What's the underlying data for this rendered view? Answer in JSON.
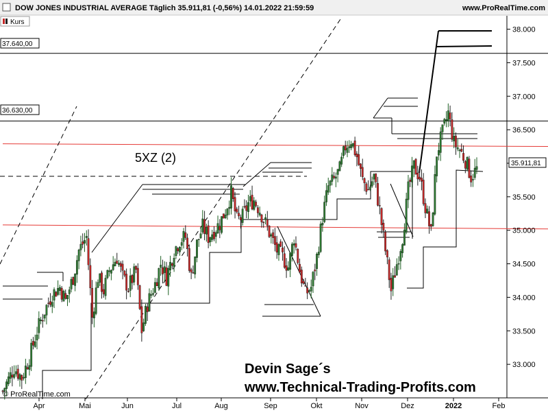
{
  "header": {
    "title": "DOW JONES INDUSTRIAL AVERAGE Täglich 35.911,81 (-0,56%) 14.01.2022 21:59:59",
    "site": "www.ProRealTime.com",
    "legend_label": "Kurs"
  },
  "watermark": "© ProRealTime.com",
  "branding": {
    "line1": "Devin Sage´s",
    "line2": "www.Technical-Trading-Profits.com"
  },
  "annotation": "5XZ (2)",
  "colors": {
    "up": "#2e7d32",
    "down": "#c62828",
    "support": "#e53935",
    "lines": "#000000",
    "background": "#ffffff"
  },
  "chart_data": {
    "type": "candlestick",
    "title": "DOW JONES INDUSTRIAL AVERAGE Täglich 35.911,81 (-0,56%) 14.01.2022 21:59:59",
    "ylim": [
      32500,
      38200
    ],
    "y_ticks": [
      33000,
      33500,
      34000,
      34500,
      35000,
      35500,
      36000,
      36500,
      37000,
      37500,
      38000
    ],
    "y_tick_labels": [
      "33.000",
      "33.500",
      "34.000",
      "34.500",
      "35.000",
      "35.500",
      "36.000",
      "36.500",
      "37.000",
      "37.500",
      "38.000"
    ],
    "x_ticks": [
      "Apr",
      "Mai",
      "Jun",
      "Jul",
      "Aug",
      "Sep",
      "Okt",
      "Nov",
      "Dez",
      "2022",
      "Feb"
    ],
    "level_boxes": [
      {
        "label": "37.640,00",
        "value": 37640
      },
      {
        "label": "36.630,00",
        "value": 36630
      }
    ],
    "last_price": {
      "label": "35.911,81",
      "value": 35911.81
    },
    "close_path": [
      [
        0,
        32600
      ],
      [
        6,
        32950
      ],
      [
        10,
        32800
      ],
      [
        14,
        33100
      ],
      [
        18,
        33500
      ],
      [
        22,
        33800
      ],
      [
        26,
        34050
      ],
      [
        30,
        34150
      ],
      [
        33,
        33950
      ],
      [
        37,
        34300
      ],
      [
        40,
        34700
      ],
      [
        44,
        34900
      ],
      [
        47,
        33700
      ],
      [
        50,
        34300
      ],
      [
        53,
        34100
      ],
      [
        56,
        34400
      ],
      [
        60,
        34600
      ],
      [
        63,
        34300
      ],
      [
        66,
        34150
      ],
      [
        70,
        34400
      ],
      [
        73,
        33500
      ],
      [
        76,
        33900
      ],
      [
        80,
        34200
      ],
      [
        83,
        34500
      ],
      [
        86,
        34300
      ],
      [
        90,
        34700
      ],
      [
        93,
        34850
      ],
      [
        96,
        34900
      ],
      [
        99,
        34300
      ],
      [
        102,
        34800
      ],
      [
        105,
        35050
      ],
      [
        108,
        34900
      ],
      [
        111,
        35000
      ],
      [
        114,
        35100
      ],
      [
        117,
        35300
      ],
      [
        120,
        35550
      ],
      [
        123,
        35150
      ],
      [
        126,
        35200
      ],
      [
        129,
        35400
      ],
      [
        132,
        35450
      ],
      [
        135,
        35300
      ],
      [
        138,
        35100
      ],
      [
        141,
        34900
      ],
      [
        144,
        34700
      ],
      [
        147,
        34600
      ],
      [
        150,
        34450
      ],
      [
        153,
        34900
      ],
      [
        156,
        34400
      ],
      [
        159,
        34050
      ],
      [
        162,
        34150
      ],
      [
        165,
        34600
      ],
      [
        168,
        35200
      ],
      [
        171,
        35650
      ],
      [
        174,
        35750
      ],
      [
        177,
        35900
      ],
      [
        180,
        36250
      ],
      [
        183,
        36350
      ],
      [
        186,
        36100
      ],
      [
        189,
        35750
      ],
      [
        192,
        35600
      ],
      [
        195,
        35800
      ],
      [
        198,
        35300
      ],
      [
        201,
        34700
      ],
      [
        204,
        34100
      ],
      [
        207,
        34500
      ],
      [
        210,
        34900
      ],
      [
        213,
        35600
      ],
      [
        216,
        35950
      ],
      [
        219,
        35800
      ],
      [
        222,
        35350
      ],
      [
        225,
        34950
      ],
      [
        228,
        36150
      ],
      [
        231,
        36450
      ],
      [
        234,
        36750
      ],
      [
        237,
        36300
      ],
      [
        240,
        36200
      ],
      [
        243,
        36050
      ],
      [
        246,
        35800
      ],
      [
        249,
        35911.81
      ]
    ],
    "support_lines": [
      {
        "from": [
          0,
          35080
        ],
        "to": [
          249,
          35020
        ]
      },
      {
        "from": [
          0,
          36290
        ],
        "to": [
          249,
          36250
        ]
      }
    ],
    "resistance_levels": [
      37640,
      36630
    ],
    "xlabel": "",
    "ylabel": ""
  }
}
